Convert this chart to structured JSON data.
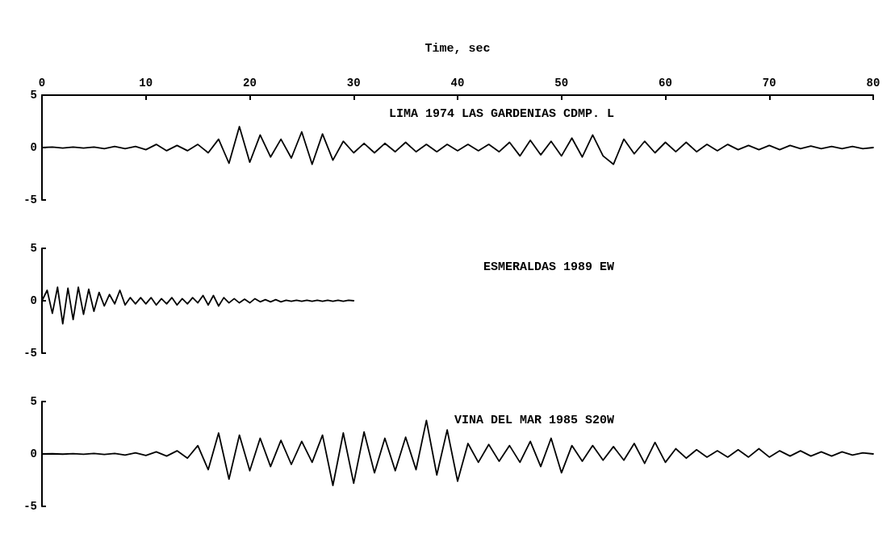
{
  "chart_data": [
    {
      "type": "line",
      "xlabel": "Time, sec",
      "xlim": [
        0,
        80
      ],
      "xticks": [
        0,
        10,
        20,
        30,
        40,
        50,
        60,
        70,
        80
      ],
      "ylim": [
        -5,
        5
      ],
      "yticks": [
        -5,
        0,
        5
      ],
      "grid": false,
      "legend": false,
      "marker": "none",
      "line_style": "solid",
      "series": [
        {
          "name": "LIMA 1974 LAS GARDENIAS CDMP. L",
          "color": "#000000",
          "x": [
            0,
            1,
            2,
            3,
            4,
            5,
            6,
            7,
            8,
            9,
            10,
            11,
            12,
            13,
            14,
            15,
            16,
            17,
            18,
            19,
            20,
            21,
            22,
            23,
            24,
            25,
            26,
            27,
            28,
            29,
            30,
            31,
            32,
            33,
            34,
            35,
            36,
            37,
            38,
            39,
            40,
            41,
            42,
            43,
            44,
            45,
            46,
            47,
            48,
            49,
            50,
            51,
            52,
            53,
            54,
            55,
            56,
            57,
            58,
            59,
            60,
            61,
            62,
            63,
            64,
            65,
            66,
            67,
            68,
            69,
            70,
            71,
            72,
            73,
            74,
            75,
            76,
            77,
            78,
            79,
            80
          ],
          "values": [
            0,
            0.05,
            -0.05,
            0.05,
            -0.05,
            0.05,
            -0.1,
            0.1,
            -0.1,
            0.1,
            -0.2,
            0.3,
            -0.3,
            0.2,
            -0.3,
            0.3,
            -0.5,
            0.8,
            -1.5,
            2.0,
            -1.4,
            1.2,
            -0.9,
            0.8,
            -1.0,
            1.5,
            -1.6,
            1.3,
            -1.2,
            0.6,
            -0.5,
            0.4,
            -0.5,
            0.4,
            -0.4,
            0.5,
            -0.4,
            0.3,
            -0.4,
            0.3,
            -0.3,
            0.3,
            -0.3,
            0.3,
            -0.4,
            0.5,
            -0.8,
            0.7,
            -0.7,
            0.6,
            -0.8,
            0.9,
            -0.9,
            1.2,
            -0.8,
            -1.6,
            0.8,
            -0.6,
            0.6,
            -0.5,
            0.5,
            -0.4,
            0.5,
            -0.4,
            0.3,
            -0.3,
            0.3,
            -0.2,
            0.2,
            -0.2,
            0.2,
            -0.2,
            0.2,
            -0.1,
            0.15,
            -0.1,
            0.1,
            -0.1,
            0.1,
            -0.1,
            0
          ]
        }
      ]
    },
    {
      "type": "line",
      "xlim": [
        0,
        80
      ],
      "ylim": [
        -5,
        5
      ],
      "yticks": [
        -5,
        0,
        5
      ],
      "grid": false,
      "legend": false,
      "marker": "none",
      "line_style": "solid",
      "tick_labels": "y",
      "series": [
        {
          "name": "ESMERALDAS 1989 EW",
          "color": "#000000",
          "x": [
            0,
            0.5,
            1,
            1.5,
            2,
            2.5,
            3,
            3.5,
            4,
            4.5,
            5,
            5.5,
            6,
            6.5,
            7,
            7.5,
            8,
            8.5,
            9,
            9.5,
            10,
            10.5,
            11,
            11.5,
            12,
            12.5,
            13,
            13.5,
            14,
            14.5,
            15,
            15.5,
            16,
            16.5,
            17,
            17.5,
            18,
            18.5,
            19,
            19.5,
            20,
            20.5,
            21,
            21.5,
            22,
            22.5,
            23,
            23.5,
            24,
            24.5,
            25,
            25.5,
            26,
            26.5,
            27,
            27.5,
            28,
            28.5,
            29,
            29.5,
            30
          ],
          "values": [
            0,
            1.0,
            -1.2,
            1.3,
            -2.2,
            1.2,
            -1.8,
            1.3,
            -1.3,
            1.1,
            -1.0,
            0.8,
            -0.5,
            0.6,
            -0.3,
            1.0,
            -0.4,
            0.3,
            -0.3,
            0.3,
            -0.3,
            0.3,
            -0.4,
            0.2,
            -0.3,
            0.3,
            -0.4,
            0.2,
            -0.3,
            0.3,
            -0.2,
            0.5,
            -0.4,
            0.5,
            -0.5,
            0.3,
            -0.2,
            0.2,
            -0.2,
            0.15,
            -0.2,
            0.2,
            -0.1,
            0.1,
            -0.1,
            0.1,
            -0.1,
            0.05,
            -0.05,
            0.05,
            -0.05,
            0.05,
            -0.05,
            0.05,
            -0.05,
            0.05,
            -0.05,
            0.05,
            -0.05,
            0.05,
            0
          ]
        }
      ]
    },
    {
      "type": "line",
      "xlim": [
        0,
        80
      ],
      "ylim": [
        -5,
        5
      ],
      "yticks": [
        -5,
        0,
        5
      ],
      "grid": false,
      "legend": false,
      "marker": "none",
      "line_style": "solid",
      "tick_labels": "y",
      "series": [
        {
          "name": "VINA DEL MAR 1985 S20W",
          "color": "#000000",
          "x": [
            0,
            1,
            2,
            3,
            4,
            5,
            6,
            7,
            8,
            9,
            10,
            11,
            12,
            13,
            14,
            15,
            16,
            17,
            18,
            19,
            20,
            21,
            22,
            23,
            24,
            25,
            26,
            27,
            28,
            29,
            30,
            31,
            32,
            33,
            34,
            35,
            36,
            37,
            38,
            39,
            40,
            41,
            42,
            43,
            44,
            45,
            46,
            47,
            48,
            49,
            50,
            51,
            52,
            53,
            54,
            55,
            56,
            57,
            58,
            59,
            60,
            61,
            62,
            63,
            64,
            65,
            66,
            67,
            68,
            69,
            70,
            71,
            72,
            73,
            74,
            75,
            76,
            77,
            78,
            79,
            80
          ],
          "values": [
            0,
            0.02,
            -0.02,
            0.03,
            -0.03,
            0.05,
            -0.05,
            0.05,
            -0.1,
            0.1,
            -0.15,
            0.2,
            -0.2,
            0.3,
            -0.4,
            0.8,
            -1.5,
            2.0,
            -2.4,
            1.8,
            -1.6,
            1.5,
            -1.2,
            1.3,
            -1.0,
            1.2,
            -0.8,
            1.8,
            -3.0,
            2.0,
            -2.8,
            2.1,
            -1.8,
            1.5,
            -1.6,
            1.6,
            -1.5,
            3.2,
            -2.0,
            2.3,
            -2.6,
            1.0,
            -0.8,
            0.9,
            -0.7,
            0.8,
            -0.8,
            1.2,
            -1.2,
            1.5,
            -1.8,
            0.8,
            -0.7,
            0.8,
            -0.6,
            0.7,
            -0.6,
            1.0,
            -0.9,
            1.1,
            -0.8,
            0.5,
            -0.4,
            0.4,
            -0.3,
            0.3,
            -0.3,
            0.4,
            -0.3,
            0.5,
            -0.3,
            0.3,
            -0.2,
            0.3,
            -0.2,
            0.2,
            -0.2,
            0.2,
            -0.1,
            0.1,
            0
          ]
        }
      ]
    }
  ]
}
